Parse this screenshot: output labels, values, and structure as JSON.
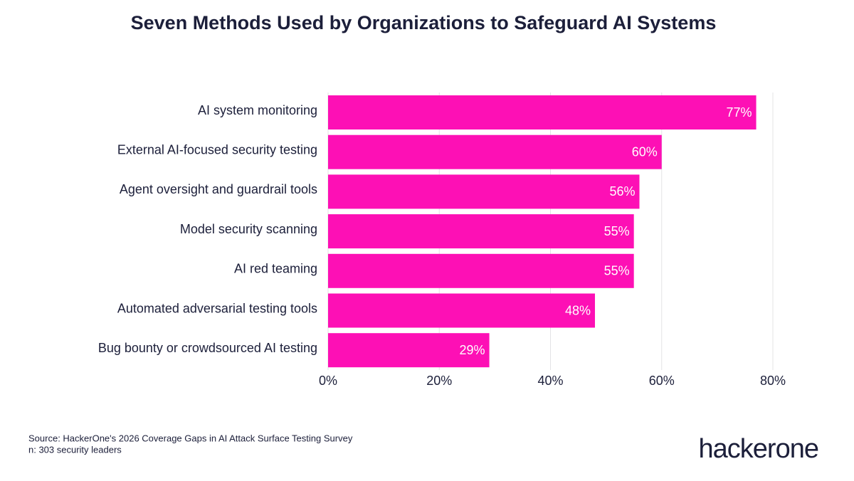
{
  "chart_data": {
    "type": "bar",
    "orientation": "horizontal",
    "title": "Seven Methods Used by Organizations to Safeguard AI Systems",
    "categories": [
      "AI system monitoring",
      "External AI-focused security testing",
      "Agent oversight and guardrail tools",
      "Model security scanning",
      "AI red teaming",
      "Automated adversarial testing tools",
      "Bug bounty or crowdsourced AI testing"
    ],
    "values": [
      77,
      60,
      56,
      55,
      55,
      48,
      29
    ],
    "value_labels": [
      "77%",
      "60%",
      "56%",
      "55%",
      "55%",
      "48%",
      "29%"
    ],
    "color": "#fd10b5",
    "xlim": [
      0,
      80
    ],
    "xticks": [
      {
        "value": 0,
        "label": "0%"
      },
      {
        "value": 20,
        "label": "20%"
      },
      {
        "value": 40,
        "label": "40%"
      },
      {
        "value": 60,
        "label": "60%"
      },
      {
        "value": 80,
        "label": "80%"
      }
    ],
    "grid": true
  },
  "footer": {
    "source": "Source: HackerOne's 2026 Coverage Gaps in AI Attack Surface Testing Survey",
    "sample": "n: 303 security leaders",
    "brand": "hackerone"
  }
}
